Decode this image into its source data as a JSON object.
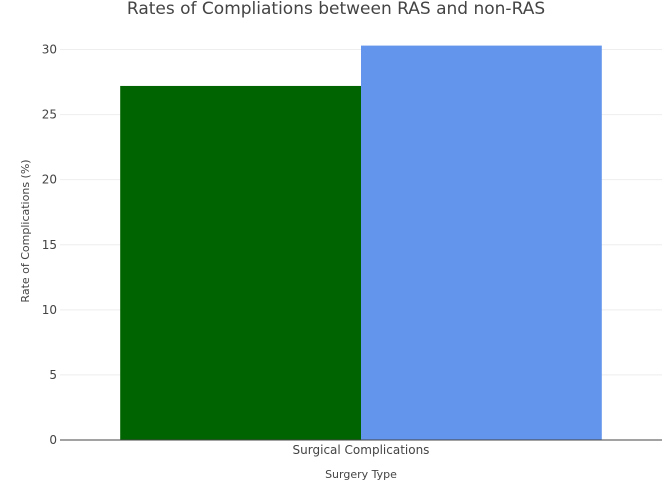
{
  "chart_data": {
    "type": "bar",
    "title": "Rates of Compliations between RAS and non-RAS",
    "xlabel": "Surgery Type",
    "ylabel": "Rate of Complications (%)",
    "categories": [
      "Surgical Complications"
    ],
    "series": [
      {
        "values": [
          27.2
        ],
        "color": "#006400"
      },
      {
        "values": [
          30.3
        ],
        "color": "#6495ED"
      }
    ],
    "ylim": [
      0,
      31
    ],
    "yticks": [
      0,
      5,
      10,
      15,
      20,
      25,
      30
    ],
    "grid": true,
    "legend": "none",
    "barmode": "group"
  }
}
